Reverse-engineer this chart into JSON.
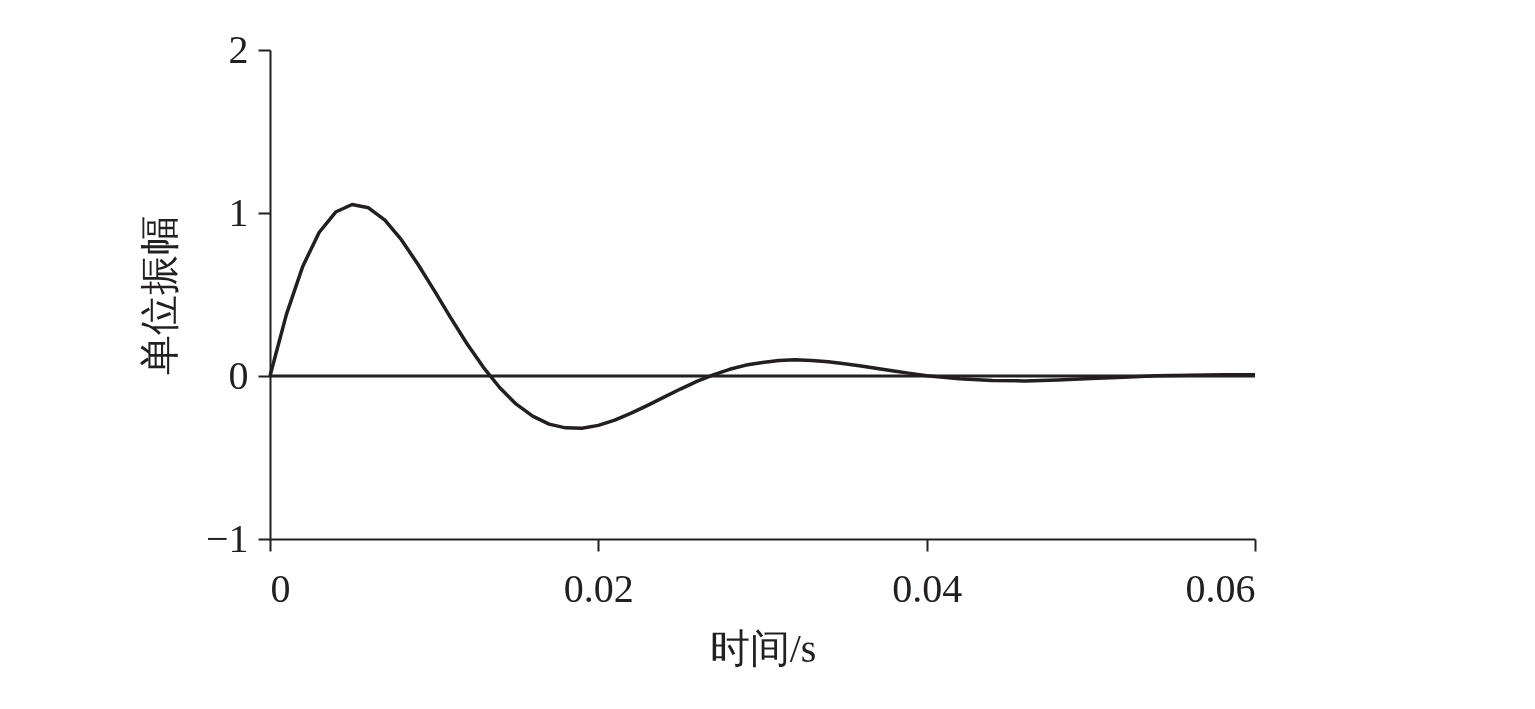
{
  "chart_data": {
    "type": "line",
    "xlabel": "时间/s",
    "ylabel": "单位振幅",
    "x": [
      0,
      0.001,
      0.002,
      0.003,
      0.004,
      0.005,
      0.006,
      0.007,
      0.008,
      0.009,
      0.01,
      0.011,
      0.012,
      0.013,
      0.014,
      0.015,
      0.016,
      0.017,
      0.018,
      0.019,
      0.02,
      0.021,
      0.022,
      0.023,
      0.024,
      0.025,
      0.026,
      0.027,
      0.028,
      0.029,
      0.03,
      0.031,
      0.032,
      0.033,
      0.034,
      0.035,
      0.036,
      0.037,
      0.038,
      0.039,
      0.04,
      0.042,
      0.044,
      0.046,
      0.048,
      0.05,
      0.052,
      0.054,
      0.056,
      0.058,
      0.06
    ],
    "series": [
      {
        "color": "#231f20",
        "values": [
          0,
          0.378,
          0.674,
          0.882,
          1.006,
          1.052,
          1.032,
          0.956,
          0.836,
          0.687,
          0.525,
          0.358,
          0.198,
          0.053,
          -0.072,
          -0.173,
          -0.246,
          -0.295,
          -0.318,
          -0.32,
          -0.303,
          -0.271,
          -0.228,
          -0.18,
          -0.13,
          -0.08,
          -0.033,
          0.007,
          0.041,
          0.067,
          0.083,
          0.095,
          0.099,
          0.095,
          0.087,
          0.075,
          0.061,
          0.046,
          0.031,
          0.016,
          0.002,
          -0.017,
          -0.028,
          -0.03,
          -0.024,
          -0.016,
          -0.007,
          0.001,
          0.005,
          0.007,
          0.008
        ]
      }
    ],
    "xlim": [
      0,
      0.06
    ],
    "xticks": [
      0,
      0.02,
      0.04,
      0.06
    ],
    "ylim": [
      -1,
      2
    ],
    "yticks": [
      -1,
      0,
      1,
      2
    ],
    "ref_lines": [
      {
        "axis": "y",
        "value": 0,
        "color": "#231f20"
      }
    ],
    "grid": false,
    "legend": false,
    "marker": "none",
    "line_style": "solid"
  }
}
